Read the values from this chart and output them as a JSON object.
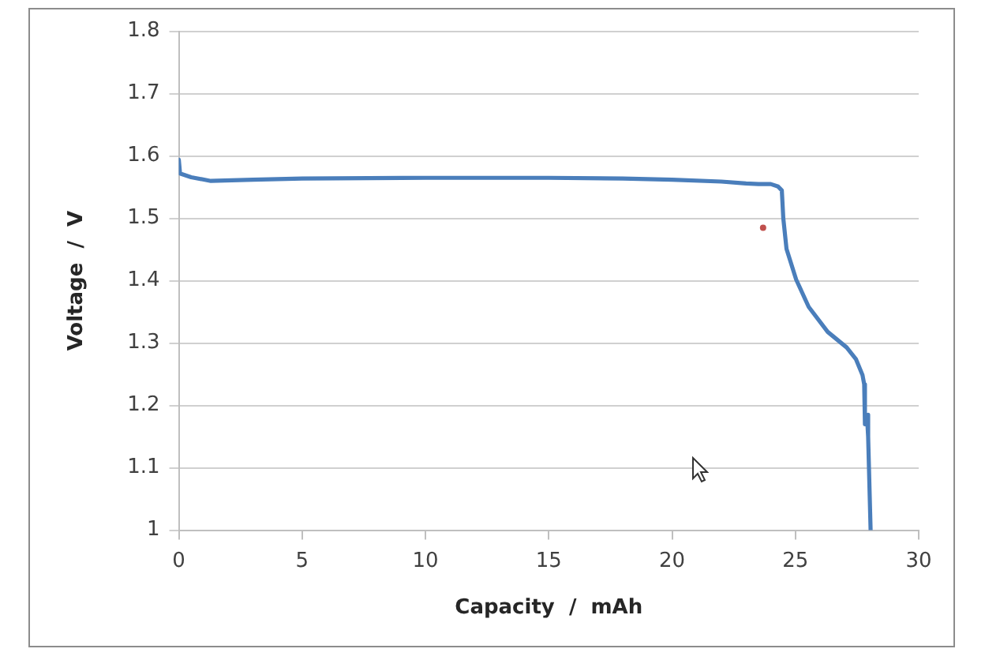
{
  "chart_data": {
    "type": "line",
    "xlabel": "Capacity  /  mAh",
    "ylabel": "Voltage  /  V",
    "xlim": [
      0,
      30
    ],
    "xticks": [
      0,
      5,
      10,
      15,
      20,
      25,
      30
    ],
    "ylim": [
      1,
      1.8
    ],
    "yticks": [
      1,
      1.1,
      1.2,
      1.3,
      1.4,
      1.5,
      1.6,
      1.7,
      1.8
    ],
    "grid": "y",
    "legend": false,
    "marker": "none",
    "line_style": "solid",
    "series": [
      {
        "type": "line",
        "color": "#4a7ebb",
        "x": [
          0,
          0.05,
          0.5,
          1.3,
          3,
          5,
          10,
          15,
          18,
          20,
          22,
          23,
          23.5,
          24,
          24.3,
          24.45,
          24.51,
          24.64,
          25.03,
          25.54,
          26.31,
          27.08,
          27.46,
          27.72,
          27.79,
          27.82,
          27.9,
          27.95,
          28.05
        ],
        "values": [
          1.594,
          1.572,
          1.566,
          1.56,
          1.562,
          1.564,
          1.565,
          1.565,
          1.564,
          1.562,
          1.559,
          1.556,
          1.555,
          1.555,
          1.551,
          1.545,
          1.5,
          1.451,
          1.402,
          1.358,
          1.318,
          1.293,
          1.274,
          1.249,
          1.234,
          1.17,
          1.185,
          1.15,
          1.0
        ]
      },
      {
        "type": "scatter",
        "color": "#c0504d",
        "marker": "circle",
        "x": [
          23.69
        ],
        "values": [
          1.485
        ]
      }
    ]
  }
}
